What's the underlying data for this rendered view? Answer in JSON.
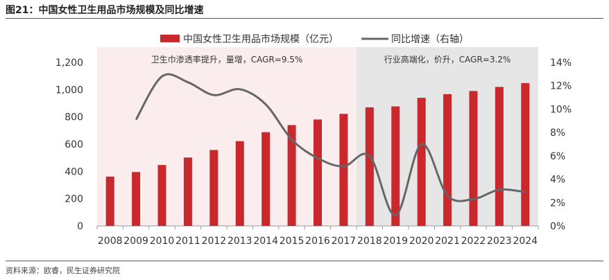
{
  "header": {
    "title": "图21：中国女性卫生用品市场规模及同比增速"
  },
  "footer": {
    "source": "资料来源：欧睿，民生证券研究院"
  },
  "colors": {
    "bar": "#c9282d",
    "line": "#666666",
    "band1": "#fbeced",
    "band2": "#e6e6e6"
  },
  "chart_data": {
    "type": "bar+line",
    "categories": [
      "2008",
      "2009",
      "2010",
      "2011",
      "2012",
      "2013",
      "2014",
      "2015",
      "2016",
      "2017",
      "2018",
      "2019",
      "2020",
      "2021",
      "2022",
      "2023",
      "2024"
    ],
    "series": [
      {
        "name": "中国女性卫生用品市场规模（亿元）",
        "type": "bar",
        "axis": "left",
        "values": [
          362,
          395,
          447,
          502,
          557,
          622,
          688,
          740,
          781,
          822,
          870,
          877,
          940,
          967,
          990,
          1020,
          1048
        ]
      },
      {
        "name": "同比增速（右轴）",
        "type": "line",
        "axis": "right",
        "values": [
          null,
          9.1,
          12.8,
          12.3,
          11.2,
          11.7,
          10.4,
          7.4,
          5.8,
          5.1,
          6.0,
          0.9,
          7.0,
          2.6,
          2.3,
          3.1,
          2.9
        ]
      }
    ],
    "left_axis": {
      "min": 0,
      "max": 1200,
      "ticks": [
        "0",
        "200",
        "400",
        "600",
        "800",
        "1,000",
        "1,200"
      ]
    },
    "right_axis": {
      "min": 0,
      "max": 14,
      "ticks": [
        "0%",
        "2%",
        "4%",
        "6%",
        "8%",
        "10%",
        "12%",
        "14%"
      ]
    },
    "annotations": [
      {
        "text": "卫生巾渗透率提升，量增，CAGR=9.5%",
        "from": "2008",
        "to": "2017"
      },
      {
        "text": "行业高端化，价升，CAGR=3.2%",
        "from": "2018",
        "to": "2024"
      }
    ]
  }
}
